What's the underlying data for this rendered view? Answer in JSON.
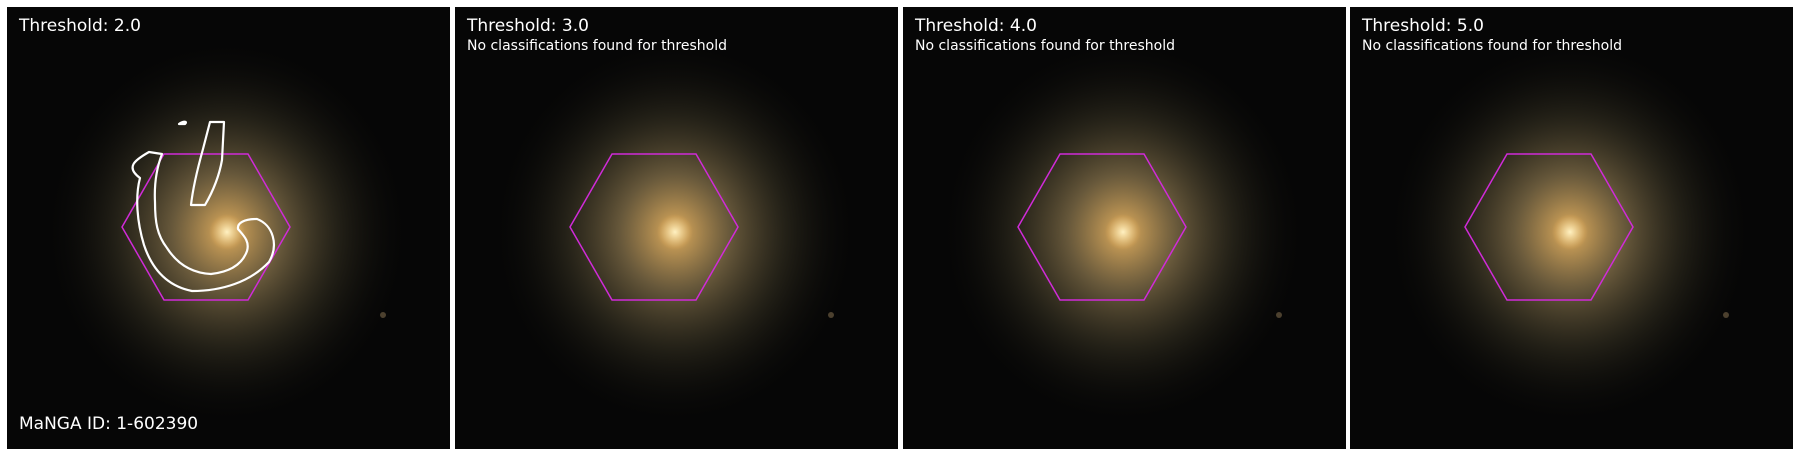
{
  "panels": [
    {
      "threshold_label": "Threshold: 2.0",
      "notice": "",
      "galaxy_id": "MaNGA ID: 1-602390",
      "has_contour": true
    },
    {
      "threshold_label": "Threshold: 3.0",
      "notice": "No classifications found for threshold",
      "galaxy_id": "",
      "has_contour": false
    },
    {
      "threshold_label": "Threshold: 4.0",
      "notice": "No classifications found for threshold",
      "galaxy_id": "",
      "has_contour": false
    },
    {
      "threshold_label": "Threshold: 5.0",
      "notice": "No classifications found for threshold",
      "galaxy_id": "",
      "has_contour": false
    }
  ],
  "colors": {
    "background": "#050505",
    "hexagon": "#d02bd8",
    "contour": "#ffffff",
    "galaxy_core": "#ffd27a",
    "galaxy_halo": "#a89a6a"
  }
}
